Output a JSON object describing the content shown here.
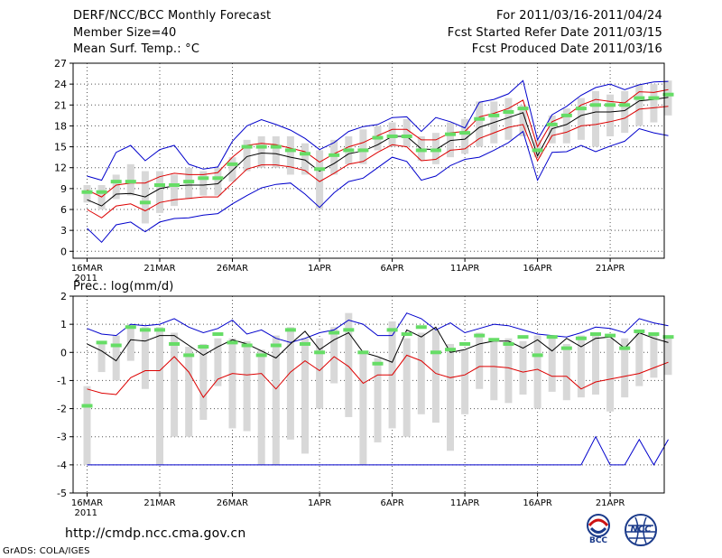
{
  "header": {
    "title": "DERF/NCC/BCC Monthly Forecast",
    "member_size": "Member Size=40",
    "variable": "Mean Surf. Temp.: °C",
    "period": "For 2011/03/16-2011/04/24",
    "started": "Fcst Started Refer Date 2011/03/15",
    "produced": "Fcst Produced Date 2011/03/16"
  },
  "footer": {
    "url": "http://cmdp.ncc.cma.gov.cn",
    "grads": "GrADS: COLA/IGES",
    "logo_left": "BCC",
    "logo_right": "NCC"
  },
  "colors": {
    "mean": "#000000",
    "spread": "#d8d8d8",
    "median": "#66dd66",
    "upper": "#0000cc",
    "pct": "#dd0000",
    "grid": "#555555"
  },
  "chart_data": [
    {
      "type": "line",
      "title": "Mean Surf. Temp.: °C",
      "x_tick_labels": [
        "16MAR\n2011",
        "21MAR",
        "26MAR",
        "1APR",
        "6APR",
        "11APR",
        "16APR",
        "21APR"
      ],
      "x_tick_days": [
        0,
        5,
        10,
        16,
        21,
        26,
        31,
        36
      ],
      "ylim": [
        -1,
        27
      ],
      "yticks": [
        0,
        3,
        6,
        9,
        12,
        15,
        18,
        21,
        24,
        27
      ],
      "series": [
        {
          "name": "max",
          "values": [
            10.8,
            10.2,
            14.2,
            15.2,
            13.0,
            14.6,
            15.2,
            12.5,
            11.8,
            12.1,
            15.8,
            18.0,
            18.9,
            18.2,
            17.4,
            16.2,
            14.6,
            15.6,
            17.2,
            17.9,
            18.2,
            19.2,
            19.3,
            17.2,
            19.2,
            18.6,
            17.7,
            21.4,
            21.8,
            22.6,
            24.5,
            16.0,
            19.6,
            20.8,
            22.4,
            23.5,
            24.0,
            23.2,
            23.9,
            24.3,
            24.4
          ]
        },
        {
          "name": "min",
          "values": [
            3.3,
            1.3,
            3.8,
            4.2,
            2.8,
            4.2,
            4.7,
            4.8,
            5.2,
            5.4,
            6.8,
            8.0,
            9.1,
            9.6,
            9.8,
            8.2,
            6.3,
            8.4,
            10.0,
            10.5,
            12.0,
            13.5,
            12.9,
            10.2,
            10.8,
            12.3,
            13.2,
            13.5,
            14.5,
            15.6,
            17.2,
            10.2,
            14.2,
            14.3,
            15.2,
            14.3,
            15.1,
            15.8,
            17.6,
            17.0,
            16.6
          ]
        },
        {
          "name": "p90",
          "values": [
            8.8,
            7.8,
            9.5,
            9.8,
            9.8,
            10.7,
            11.2,
            11.0,
            11.0,
            11.3,
            13.5,
            15.2,
            15.5,
            15.3,
            14.8,
            14.3,
            12.8,
            14.0,
            15.0,
            15.6,
            16.6,
            17.5,
            17.5,
            16.0,
            16.0,
            17.0,
            17.2,
            19.3,
            19.8,
            20.5,
            21.7,
            15.0,
            18.6,
            19.5,
            21.0,
            21.8,
            21.5,
            21.3,
            22.9,
            22.8,
            23.2
          ]
        },
        {
          "name": "p10",
          "values": [
            6.0,
            4.8,
            6.5,
            6.8,
            5.8,
            7.0,
            7.4,
            7.6,
            7.8,
            7.8,
            9.8,
            11.8,
            12.4,
            12.4,
            12.1,
            11.6,
            10.0,
            11.2,
            12.5,
            12.9,
            14.2,
            15.3,
            15.0,
            13.0,
            13.2,
            14.5,
            14.7,
            16.2,
            17.0,
            17.8,
            18.2,
            13.0,
            16.6,
            17.1,
            18.0,
            18.2,
            18.6,
            19.1,
            20.4,
            20.6,
            20.8
          ]
        },
        {
          "name": "mean",
          "values": [
            7.4,
            6.5,
            8.2,
            8.3,
            7.8,
            9.0,
            9.4,
            9.5,
            9.5,
            9.7,
            11.6,
            13.6,
            14.1,
            14.0,
            13.5,
            13.1,
            11.5,
            12.6,
            14.0,
            14.4,
            15.3,
            16.5,
            16.5,
            14.7,
            14.6,
            15.9,
            16.1,
            17.8,
            18.5,
            19.2,
            19.9,
            13.7,
            17.6,
            18.2,
            19.5,
            20.0,
            20.0,
            20.2,
            21.6,
            21.8,
            22.1
          ]
        },
        {
          "name": "median",
          "values": [
            8.5,
            8.5,
            10.0,
            10.0,
            7.0,
            9.5,
            9.5,
            10.0,
            10.5,
            10.5,
            12.5,
            15.0,
            15.0,
            15.0,
            14.5,
            14.0,
            11.8,
            13.8,
            14.5,
            14.5,
            16.3,
            16.5,
            16.5,
            14.5,
            14.5,
            16.8,
            17.0,
            19.0,
            19.5,
            20.0,
            20.5,
            14.5,
            18.2,
            19.5,
            20.5,
            21.0,
            21.0,
            21.0,
            22.0,
            22.0,
            22.5
          ]
        }
      ],
      "spread_boxes": [
        [
          7.0,
          9.5
        ],
        [
          6.0,
          9.5
        ],
        [
          7.5,
          11.0
        ],
        [
          8.0,
          12.5
        ],
        [
          4.0,
          11.5
        ],
        [
          5.5,
          11.5
        ],
        [
          6.5,
          11.0
        ],
        [
          7.5,
          12.0
        ],
        [
          8.0,
          11.5
        ],
        [
          8.0,
          12.0
        ],
        [
          10.0,
          13.5
        ],
        [
          11.5,
          16.0
        ],
        [
          12.0,
          16.5
        ],
        [
          12.0,
          16.5
        ],
        [
          11.0,
          16.5
        ],
        [
          11.0,
          15.5
        ],
        [
          6.0,
          14.5
        ],
        [
          11.0,
          16.0
        ],
        [
          12.5,
          16.5
        ],
        [
          12.5,
          17.5
        ],
        [
          14.5,
          18.0
        ],
        [
          15.0,
          18.5
        ],
        [
          15.0,
          19.0
        ],
        [
          13.0,
          16.5
        ],
        [
          12.5,
          17.0
        ],
        [
          13.5,
          18.5
        ],
        [
          14.0,
          19.0
        ],
        [
          15.0,
          21.5
        ],
        [
          15.5,
          21.5
        ],
        [
          16.0,
          22.0
        ],
        [
          16.5,
          21.0
        ],
        [
          13.5,
          16.0
        ],
        [
          15.5,
          19.5
        ],
        [
          15.5,
          20.5
        ],
        [
          16.0,
          22.0
        ],
        [
          15.0,
          23.0
        ],
        [
          16.5,
          22.5
        ],
        [
          17.0,
          23.0
        ],
        [
          18.0,
          24.0
        ],
        [
          18.5,
          24.0
        ],
        [
          19.5,
          24.5
        ]
      ]
    },
    {
      "type": "line",
      "title": "Prec.: log(mm/d)",
      "x_tick_labels": [
        "16MAR\n2011",
        "21MAR",
        "26MAR",
        "1APR",
        "6APR",
        "11APR",
        "16APR",
        "21APR"
      ],
      "x_tick_days": [
        0,
        5,
        10,
        16,
        21,
        26,
        31,
        36
      ],
      "ylim": [
        -5,
        2
      ],
      "yticks": [
        -5,
        -4,
        -3,
        -2,
        -1,
        0,
        1,
        2
      ],
      "series": [
        {
          "name": "max",
          "values": [
            0.85,
            0.65,
            0.6,
            1.0,
            0.95,
            1.0,
            1.2,
            0.9,
            0.7,
            0.85,
            1.15,
            0.65,
            0.8,
            0.5,
            0.35,
            0.5,
            0.7,
            0.8,
            1.15,
            1.0,
            0.6,
            0.6,
            1.4,
            1.2,
            0.8,
            1.05,
            0.7,
            0.85,
            1.0,
            0.95,
            0.8,
            0.65,
            0.6,
            0.55,
            0.7,
            0.9,
            0.85,
            0.7,
            1.2,
            1.05,
            0.95
          ]
        },
        {
          "name": "min",
          "values": [
            -4,
            -4,
            -4,
            -4,
            -4,
            -4,
            -4,
            -4,
            -4,
            -4,
            -4,
            -4,
            -4,
            -4,
            -4,
            -4,
            -4,
            -4,
            -4,
            -4,
            -4,
            -4,
            -4,
            -4,
            -4,
            -4,
            -4,
            -4,
            -4,
            -4,
            -4,
            -4,
            -4,
            -4,
            -4,
            -3.0,
            -4,
            -4,
            -3.1,
            -4,
            -3.1
          ]
        },
        {
          "name": "p10",
          "values": [
            -1.3,
            -1.45,
            -1.5,
            -0.9,
            -0.65,
            -0.65,
            -0.15,
            -0.7,
            -1.6,
            -0.95,
            -0.75,
            -0.8,
            -0.75,
            -1.3,
            -0.7,
            -0.3,
            -0.65,
            -0.15,
            -0.5,
            -1.1,
            -0.8,
            -0.8,
            -0.1,
            -0.3,
            -0.75,
            -0.9,
            -0.8,
            -0.5,
            -0.5,
            -0.55,
            -0.7,
            -0.6,
            -0.85,
            -0.85,
            -1.3,
            -1.05,
            -0.95,
            -0.85,
            -0.75,
            -0.55,
            -0.35
          ]
        },
        {
          "name": "mean",
          "values": [
            0.3,
            0.05,
            -0.3,
            0.45,
            0.4,
            0.6,
            0.6,
            0.25,
            -0.1,
            0.2,
            0.45,
            0.3,
            0.05,
            -0.2,
            0.3,
            0.75,
            0.1,
            0.45,
            0.7,
            0.0,
            -0.15,
            -0.35,
            0.8,
            0.55,
            0.9,
            0.0,
            0.1,
            0.3,
            0.4,
            0.4,
            0.15,
            0.45,
            0.05,
            0.5,
            0.2,
            0.5,
            0.55,
            0.15,
            0.7,
            0.5,
            0.35
          ]
        },
        {
          "name": "median",
          "values": [
            -1.9,
            0.35,
            0.25,
            0.9,
            0.8,
            0.8,
            0.3,
            -0.1,
            0.2,
            0.65,
            0.35,
            0.25,
            -0.1,
            0.25,
            0.8,
            0.3,
            0.0,
            0.7,
            0.8,
            0.0,
            -0.4,
            0.8,
            0.65,
            0.9,
            0.0,
            0.1,
            0.3,
            0.6,
            0.45,
            0.3,
            0.55,
            -0.1,
            0.55,
            0.15,
            0.5,
            0.65,
            0.6,
            0.15,
            0.75,
            0.65,
            0.55
          ]
        }
      ],
      "spread_boxes": [
        [
          -4.0,
          -1.2
        ],
        [
          -0.7,
          0.4
        ],
        [
          -1.0,
          0.6
        ],
        [
          -0.3,
          1.0
        ],
        [
          -1.3,
          0.9
        ],
        [
          -4.0,
          0.9
        ],
        [
          -3.0,
          0.7
        ],
        [
          -3.0,
          0.2
        ],
        [
          -2.4,
          0.3
        ],
        [
          -1.2,
          0.5
        ],
        [
          -2.7,
          0.5
        ],
        [
          -2.8,
          0.4
        ],
        [
          -4.0,
          0.1
        ],
        [
          -4.0,
          0.6
        ],
        [
          -3.1,
          0.9
        ],
        [
          -3.6,
          0.5
        ],
        [
          -2.0,
          0.5
        ],
        [
          -1.1,
          0.9
        ],
        [
          -2.3,
          1.4
        ],
        [
          -4.0,
          0.0
        ],
        [
          -3.2,
          -0.2
        ],
        [
          -2.7,
          1.1
        ],
        [
          -3.0,
          0.5
        ],
        [
          -2.2,
          0.7
        ],
        [
          -2.5,
          0.8
        ],
        [
          -3.5,
          0.3
        ],
        [
          -2.2,
          0.1
        ],
        [
          -1.3,
          0.7
        ],
        [
          -1.7,
          0.5
        ],
        [
          -1.8,
          0.5
        ],
        [
          -1.5,
          0.4
        ],
        [
          -2.0,
          0.6
        ],
        [
          -1.4,
          0.5
        ],
        [
          -1.7,
          0.3
        ],
        [
          -1.6,
          0.6
        ],
        [
          -1.5,
          0.7
        ],
        [
          -2.1,
          0.5
        ],
        [
          -1.6,
          0.5
        ],
        [
          -1.2,
          0.7
        ],
        [
          -0.9,
          0.7
        ],
        [
          -0.8,
          0.6
        ]
      ]
    }
  ]
}
